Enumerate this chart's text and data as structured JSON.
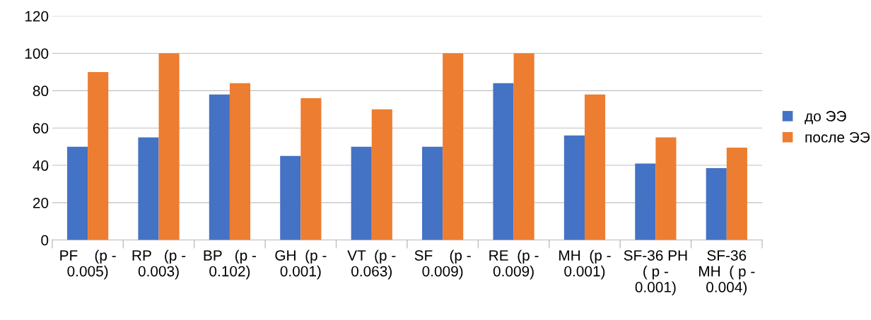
{
  "chart_data": {
    "type": "bar",
    "categories": [
      "PF    (p -\n0.005)",
      "RP   (p -\n0.003)",
      "BP   (p -\n0.102)",
      "GH  (p -\n0.001)",
      "VT  (p -\n0.063)",
      "SF    (p -\n0.009)",
      "RE  (p -\n0.009)",
      "MH  (p -\n0.001)",
      "SF-36 PH\n( p -\n0.001)",
      "SF-36\nMH  ( p -\n0.004)"
    ],
    "series": [
      {
        "name": "до ЭЭ",
        "color": "#4472c4",
        "values": [
          50,
          55,
          78,
          45,
          50,
          50,
          84,
          56,
          41,
          38.5
        ]
      },
      {
        "name": "после ЭЭ",
        "color": "#ed7d31",
        "values": [
          90,
          100,
          84,
          76,
          70,
          100,
          100,
          78,
          55,
          49.5
        ]
      }
    ],
    "ylim": [
      0,
      120
    ],
    "yticks": [
      0,
      20,
      40,
      60,
      80,
      100,
      120
    ],
    "grid": "y",
    "legend": "right"
  }
}
